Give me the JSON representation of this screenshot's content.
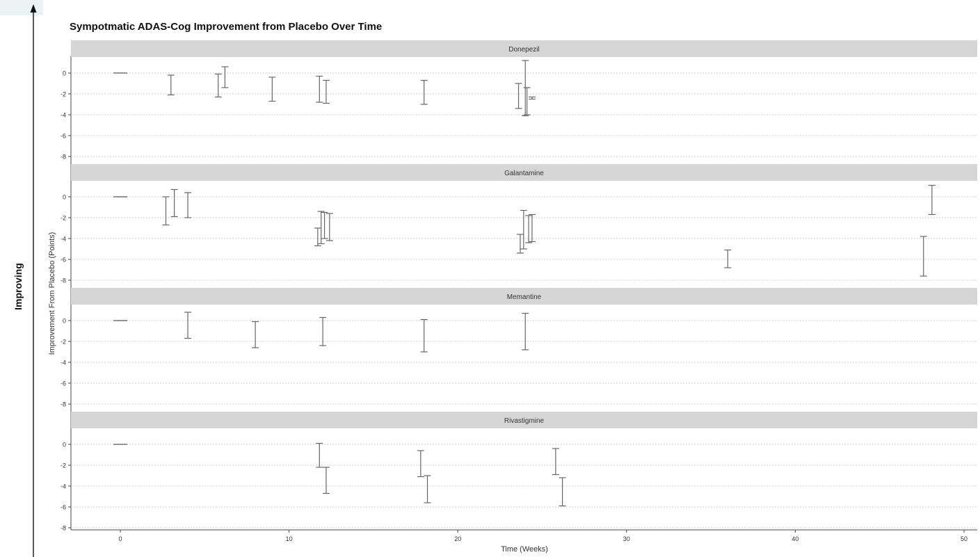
{
  "side_label": "Improving",
  "chart_data": {
    "type": "errorbar",
    "title": "Sympotmatic ADAS-Cog Improvement from Placebo Over Time",
    "xlabel": "Time (Weeks)",
    "ylabel": "Improvement From Placebo (Points)",
    "xlim": [
      -3,
      51
    ],
    "ylim": [
      -8,
      1.5
    ],
    "xticks": [
      0,
      10,
      20,
      30,
      40,
      50
    ],
    "yticks": [
      0,
      -2,
      -4,
      -6,
      -8
    ],
    "grid": "horizontal dotted",
    "panels": [
      {
        "name": "Donepezil",
        "baseline": {
          "x": 0,
          "y": 0
        },
        "intervals": [
          {
            "x": 3.0,
            "low": -2.1,
            "high": -0.2
          },
          {
            "x": 5.8,
            "low": -2.3,
            "high": -0.1
          },
          {
            "x": 6.2,
            "low": -1.4,
            "high": 0.6
          },
          {
            "x": 9.0,
            "low": -2.7,
            "high": -0.4
          },
          {
            "x": 11.8,
            "low": -2.8,
            "high": -0.3
          },
          {
            "x": 12.2,
            "low": -2.9,
            "high": -0.7
          },
          {
            "x": 18.0,
            "low": -3.0,
            "high": -0.7
          },
          {
            "x": 23.6,
            "low": -3.4,
            "high": -1.0
          },
          {
            "x": 24.0,
            "low": -4.1,
            "high": 1.2
          },
          {
            "x": 24.1,
            "low": -4.0,
            "high": -1.4
          },
          {
            "x": 24.4,
            "low": -2.5,
            "high": -2.3
          }
        ]
      },
      {
        "name": "Galantamine",
        "baseline": {
          "x": 0,
          "y": 0
        },
        "intervals": [
          {
            "x": 2.7,
            "low": -2.7,
            "high": 0.0
          },
          {
            "x": 3.2,
            "low": -1.9,
            "high": 0.7
          },
          {
            "x": 4.0,
            "low": -2.0,
            "high": 0.4
          },
          {
            "x": 11.7,
            "low": -4.7,
            "high": -3.0
          },
          {
            "x": 11.9,
            "low": -4.5,
            "high": -1.4
          },
          {
            "x": 12.1,
            "low": -4.0,
            "high": -1.5
          },
          {
            "x": 12.4,
            "low": -4.2,
            "high": -1.6
          },
          {
            "x": 23.7,
            "low": -5.4,
            "high": -3.6
          },
          {
            "x": 23.9,
            "low": -5.0,
            "high": -1.3
          },
          {
            "x": 24.2,
            "low": -4.4,
            "high": -1.8
          },
          {
            "x": 24.4,
            "low": -4.3,
            "high": -1.7
          },
          {
            "x": 36.0,
            "low": -6.8,
            "high": -5.1
          },
          {
            "x": 47.6,
            "low": -7.6,
            "high": -3.8
          },
          {
            "x": 48.1,
            "low": -1.7,
            "high": 1.1
          }
        ]
      },
      {
        "name": "Memantine",
        "baseline": {
          "x": 0,
          "y": 0
        },
        "intervals": [
          {
            "x": 4.0,
            "low": -1.7,
            "high": 0.8
          },
          {
            "x": 8.0,
            "low": -2.6,
            "high": -0.1
          },
          {
            "x": 12.0,
            "low": -2.4,
            "high": 0.3
          },
          {
            "x": 18.0,
            "low": -3.0,
            "high": 0.1
          },
          {
            "x": 24.0,
            "low": -2.8,
            "high": 0.7
          }
        ]
      },
      {
        "name": "Rivastigmine",
        "baseline": {
          "x": 0,
          "y": 0
        },
        "intervals": [
          {
            "x": 11.8,
            "low": -2.2,
            "high": 0.1
          },
          {
            "x": 12.2,
            "low": -4.7,
            "high": -2.2
          },
          {
            "x": 17.8,
            "low": -3.1,
            "high": -0.6
          },
          {
            "x": 18.2,
            "low": -5.6,
            "high": -3.0
          },
          {
            "x": 25.8,
            "low": -2.9,
            "high": -0.4
          },
          {
            "x": 26.2,
            "low": -5.9,
            "high": -3.2
          }
        ]
      }
    ]
  }
}
